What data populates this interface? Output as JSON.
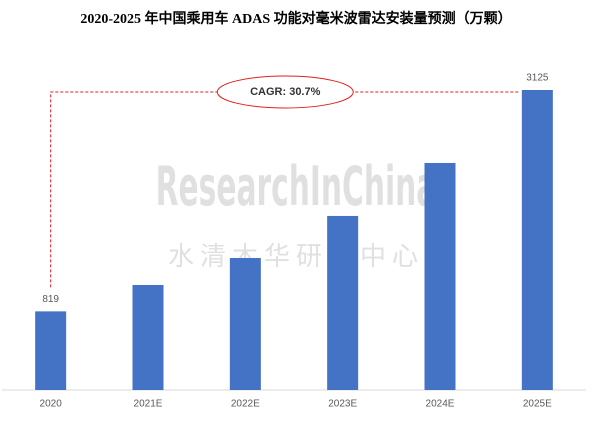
{
  "chart_data": {
    "type": "bar",
    "title": "2020-2025 年中国乘用车 ADAS 功能对毫米波雷达安装量预测（万颗）",
    "categories": [
      "2020",
      "2021E",
      "2022E",
      "2023E",
      "2024E",
      "2025E"
    ],
    "values": [
      819,
      1094,
      1375,
      1813,
      2365,
      3125
    ],
    "show_value_labels": [
      true,
      false,
      false,
      false,
      false,
      true
    ],
    "color": "#4472c4",
    "ylim": [
      0,
      3125
    ],
    "annotation": "CAGR: 30.7%",
    "annotation_color": "#e02020",
    "watermark": "ResearchInChina",
    "watermark_sub": "水清木华研究中心"
  }
}
